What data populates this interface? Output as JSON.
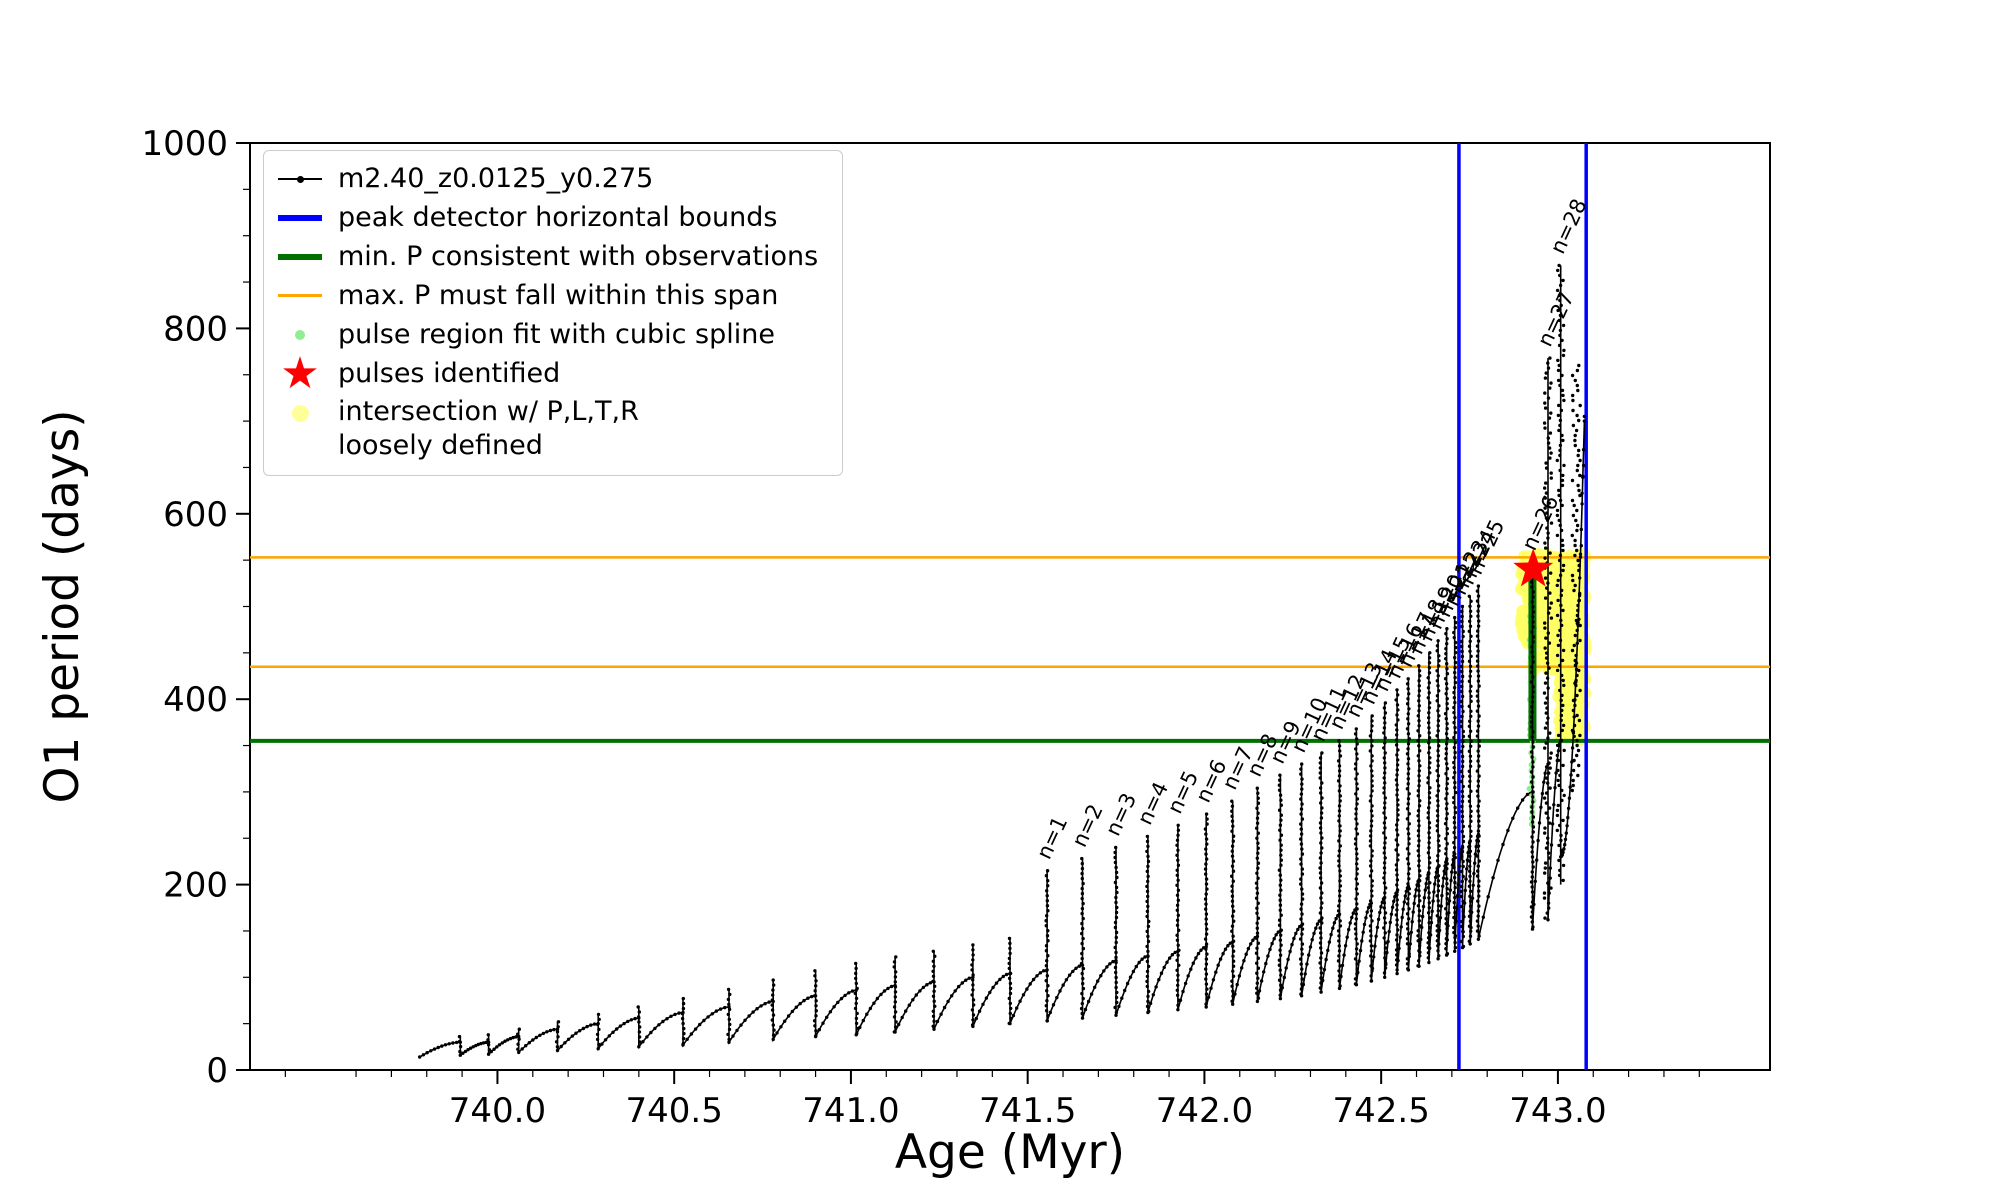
{
  "axes": {
    "xlabel": "Age (Myr)",
    "ylabel": "O1 period (days)",
    "x_range": [
      739.3,
      743.6
    ],
    "y_range": [
      0,
      1000
    ],
    "x_ticks": [
      740.0,
      740.5,
      741.0,
      741.5,
      742.0,
      742.5,
      743.0
    ],
    "x_tick_labels": [
      "740.0",
      "740.5",
      "741.0",
      "741.5",
      "742.0",
      "742.5",
      "743.0"
    ],
    "y_ticks": [
      0,
      200,
      400,
      600,
      800,
      1000
    ],
    "y_tick_labels": [
      "0",
      "200",
      "400",
      "600",
      "800",
      "1000"
    ],
    "x_minor": {
      "start": 739.4,
      "end": 743.5,
      "step": 0.1
    },
    "y_minor": {
      "start": 50,
      "end": 950,
      "step": 50
    }
  },
  "legend": {
    "items": [
      {
        "label": "m2.40_z0.0125_y0.275",
        "marker": "line-dot",
        "color": "#000000"
      },
      {
        "label": "peak detector horizontal bounds",
        "marker": "line-thick",
        "color": "#0000ff"
      },
      {
        "label": "min. P consistent with observations",
        "marker": "line-thick",
        "color": "#007000"
      },
      {
        "label": "max. P must fall within this span",
        "marker": "line",
        "color": "#ffa500"
      },
      {
        "label": "pulse region fit with cubic spline",
        "marker": "dot-small",
        "color": "#90ee90"
      },
      {
        "label": "pulses identified",
        "marker": "star",
        "color": "#ff0000"
      },
      {
        "label": "intersection w/ P,L,T,R\nloosely defined",
        "marker": "dot-large",
        "color": "#ffff88"
      }
    ]
  },
  "chart_data": {
    "type": "line",
    "title": "",
    "xlabel": "Age (Myr)",
    "ylabel": "O1 period (days)",
    "xlim": [
      739.3,
      743.6
    ],
    "ylim": [
      0,
      1000
    ],
    "series": [
      {
        "name": "m2.40_z0.0125_y0.275",
        "color": "#000000",
        "style": "line+dot-markers"
      }
    ],
    "h_lines": [
      {
        "y": 355,
        "color": "#007000",
        "width": 4,
        "name": "min-P-consistent-line"
      },
      {
        "y": 435,
        "color": "#ffa500",
        "width": 2.5,
        "name": "max-P-span-lower-line"
      },
      {
        "y": 553,
        "color": "#ffa500",
        "width": 2.5,
        "name": "max-P-span-upper-line"
      }
    ],
    "v_lines": [
      {
        "x": 742.72,
        "color": "#0000ff",
        "width": 3.5,
        "name": "peak-detector-left-bound"
      },
      {
        "x": 743.08,
        "color": "#0000ff",
        "width": 3.5,
        "name": "peak-detector-right-bound"
      }
    ],
    "cycles_format": [
      "t_start_Myr",
      "t_end_Myr",
      "period_start_days",
      "period_end_days",
      "pulse_spike_top_days",
      "label"
    ],
    "cycles": [
      [
        739.78,
        739.895,
        14,
        30,
        36,
        ""
      ],
      [
        739.895,
        739.975,
        16,
        30,
        38,
        ""
      ],
      [
        739.975,
        740.06,
        17,
        36,
        44,
        ""
      ],
      [
        740.06,
        740.17,
        19,
        44,
        52,
        ""
      ],
      [
        740.17,
        740.285,
        21,
        50,
        60,
        ""
      ],
      [
        740.285,
        740.4,
        23,
        56,
        68,
        ""
      ],
      [
        740.4,
        740.525,
        25,
        62,
        77,
        ""
      ],
      [
        740.525,
        740.655,
        27,
        68,
        87,
        ""
      ],
      [
        740.655,
        740.78,
        30,
        74,
        97,
        ""
      ],
      [
        740.78,
        740.9,
        33,
        80,
        107,
        ""
      ],
      [
        740.9,
        741.015,
        36,
        86,
        115,
        ""
      ],
      [
        741.015,
        741.125,
        38,
        91,
        122,
        ""
      ],
      [
        741.125,
        741.235,
        41,
        95,
        128,
        ""
      ],
      [
        741.235,
        741.345,
        44,
        100,
        135,
        ""
      ],
      [
        741.345,
        741.45,
        47,
        104,
        142,
        ""
      ],
      [
        741.45,
        741.555,
        50,
        108,
        215,
        "n=1"
      ],
      [
        741.555,
        741.655,
        53,
        113,
        228,
        "n=2"
      ],
      [
        741.655,
        741.75,
        56,
        118,
        240,
        "n=3"
      ],
      [
        741.75,
        741.84,
        59,
        123,
        252,
        "n=4"
      ],
      [
        741.84,
        741.925,
        62,
        128,
        264,
        "n=5"
      ],
      [
        741.925,
        742.005,
        65,
        133,
        276,
        "n=6"
      ],
      [
        742.005,
        742.08,
        68,
        138,
        290,
        "n=7"
      ],
      [
        742.08,
        742.15,
        71,
        144,
        304,
        "n=8"
      ],
      [
        742.15,
        742.215,
        74,
        150,
        318,
        "n=9"
      ],
      [
        742.215,
        742.275,
        77,
        156,
        330,
        "n=10"
      ],
      [
        742.275,
        742.33,
        80,
        162,
        342,
        "n=11"
      ],
      [
        742.33,
        742.382,
        84,
        168,
        355,
        "n=12"
      ],
      [
        742.382,
        742.43,
        88,
        174,
        368,
        "n=13"
      ],
      [
        742.43,
        742.472,
        92,
        180,
        382,
        "n=14"
      ],
      [
        742.472,
        742.51,
        96,
        186,
        396,
        "n=15"
      ],
      [
        742.51,
        742.545,
        100,
        192,
        410,
        "n=16"
      ],
      [
        742.545,
        742.577,
        104,
        198,
        422,
        "n=17"
      ],
      [
        742.577,
        742.607,
        108,
        205,
        436,
        "n=18"
      ],
      [
        742.607,
        742.635,
        112,
        212,
        450,
        "n=19"
      ],
      [
        742.635,
        742.661,
        116,
        219,
        463,
        "n=20"
      ],
      [
        742.661,
        742.685,
        120,
        226,
        476,
        "n=21"
      ],
      [
        742.685,
        742.708,
        124,
        233,
        488,
        "n=22"
      ],
      [
        742.708,
        742.73,
        128,
        240,
        500,
        "n=23"
      ],
      [
        742.73,
        742.752,
        132,
        247,
        511,
        "n=24"
      ],
      [
        742.752,
        742.775,
        136,
        254,
        522,
        "n=25"
      ],
      [
        742.775,
        742.928,
        141,
        300,
        548,
        "n=26"
      ],
      [
        742.928,
        742.972,
        152,
        330,
        768,
        "n=27"
      ],
      [
        742.972,
        743.008,
        162,
        355,
        868,
        "n=28"
      ]
    ],
    "last_cycle_low": 200,
    "tail": {
      "t0": 743.008,
      "t1": 743.075,
      "p0": 230,
      "p1": 700
    },
    "tail_column": {
      "x": 743.052,
      "low": 300,
      "top": 760
    },
    "pulse_star": {
      "x": 742.93,
      "y": 540,
      "color": "#ff0000"
    },
    "pulse_fit_bar": {
      "x": 742.928,
      "y0": 355,
      "y1": 530,
      "color": "#007000",
      "width": 8
    },
    "spline_dots": {
      "x": 742.926,
      "y0": 265,
      "y1": 528,
      "count": 42,
      "color": "#90ee90"
    },
    "yellow_regions": [
      {
        "x0": 742.895,
        "x1": 742.93,
        "y0": 460,
        "y1": 556,
        "count": 90,
        "seed": 5,
        "color": "#ffff66"
      },
      {
        "x0": 742.93,
        "x1": 743.0,
        "y0": 430,
        "y1": 558,
        "count": 260,
        "seed": 7,
        "color": "#ffff66"
      },
      {
        "x0": 743.0,
        "x1": 743.078,
        "y0": 356,
        "y1": 558,
        "count": 420,
        "seed": 13,
        "color": "#ffff66"
      }
    ]
  }
}
